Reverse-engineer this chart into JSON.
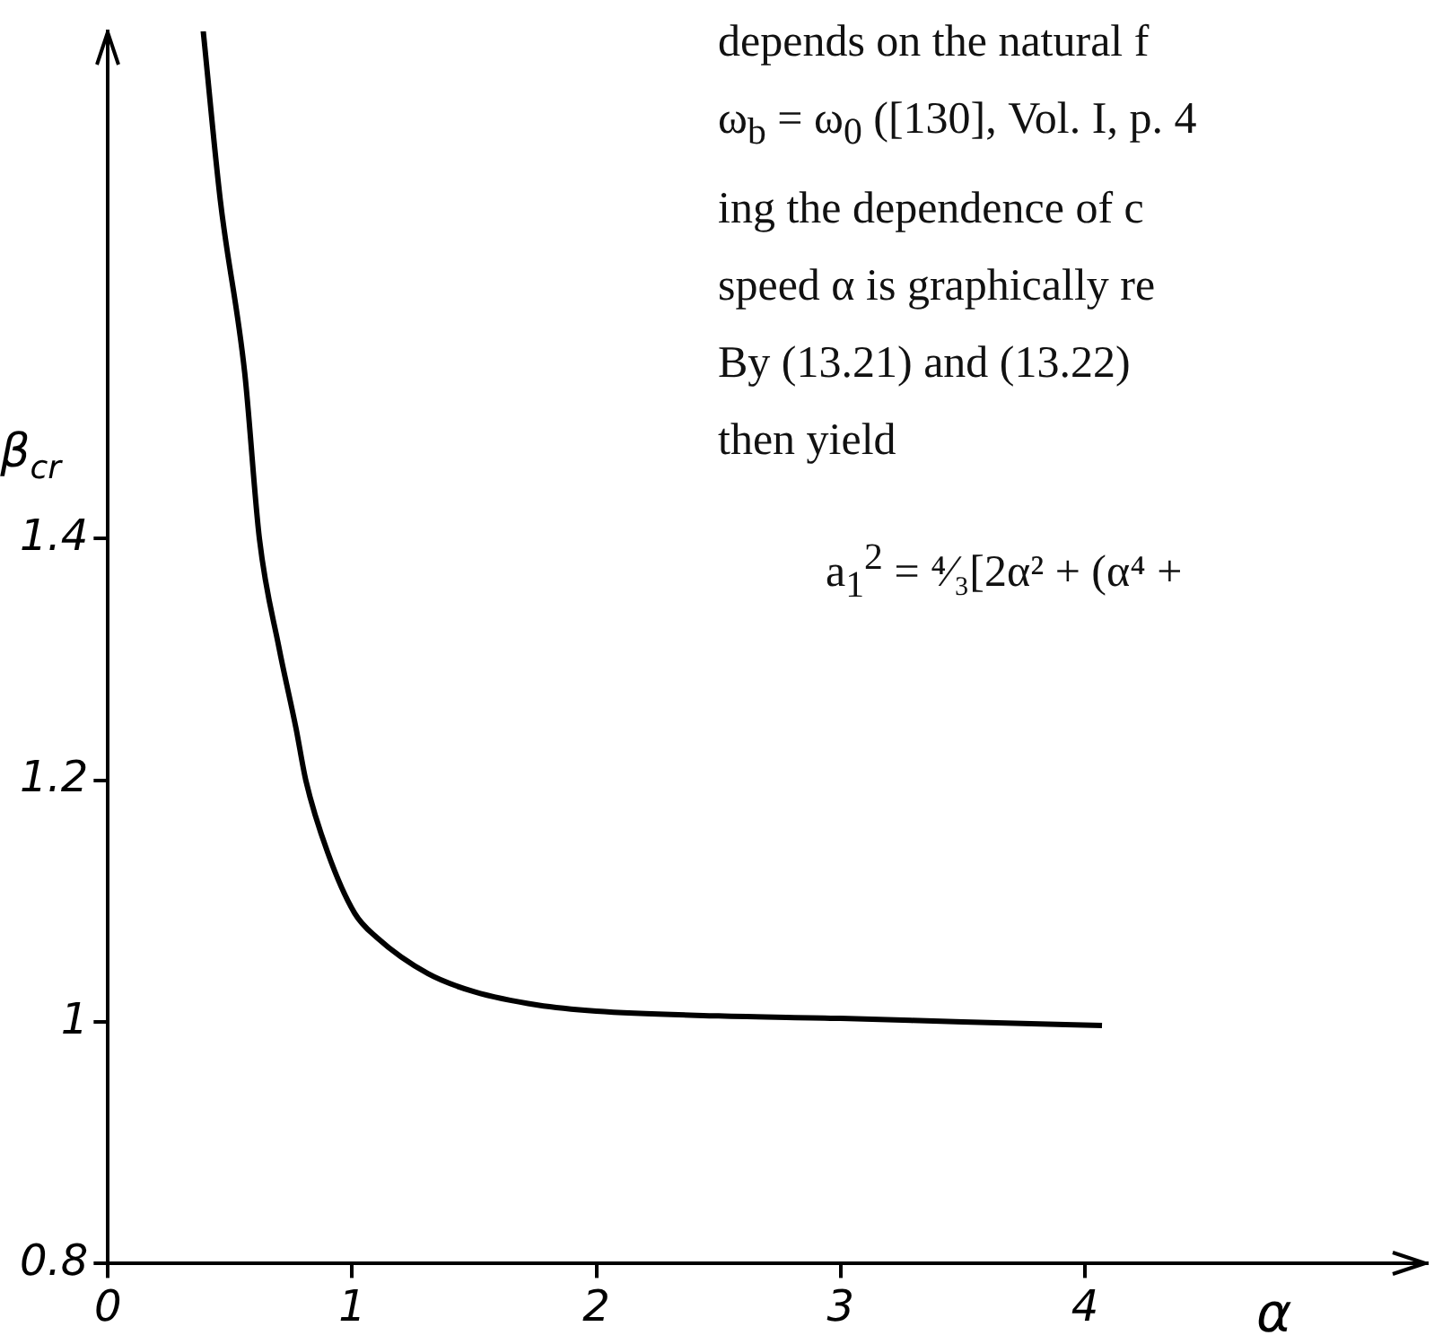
{
  "chart_data": {
    "type": "line",
    "xlabel": "α",
    "ylabel": "β$_{cr}$",
    "x": [
      0.39,
      0.46,
      0.56,
      0.62,
      0.7,
      0.77,
      0.81,
      0.9,
      1.01,
      1.1,
      1.31,
      1.5,
      1.76,
      2.0,
      2.5,
      3.0,
      3.5,
      4.07
    ],
    "series": [
      {
        "color": "#000000",
        "values": [
          1.82,
          1.68,
          1.537,
          1.4,
          1.31,
          1.243,
          1.2,
          1.14,
          1.09,
          1.07,
          1.04,
          1.025,
          1.014,
          1.009,
          1.005,
          1.003,
          1.0,
          0.997
        ]
      }
    ],
    "xlim": [
      0,
      5.4
    ],
    "ylim": [
      0.8,
      1.82
    ],
    "xticks": [
      0,
      1,
      2,
      3,
      4
    ],
    "yticks": [
      0.8,
      1,
      1.2,
      1.4
    ],
    "marker": "none",
    "line_style": "solid",
    "grid": false,
    "legend": false,
    "annotations": [
      "depends on the natural f",
      "ω$_{b}$ = ω$_{0}$ ([130], Vol. I, p. 4",
      "ing the dependence of c",
      "speed α is graphically re",
      "By (13.21) and (13.22) ",
      "then yield",
      "a$_{1}$$^{2}$ = ⁴⁄₃[2α² + (α⁴ +"
    ]
  }
}
